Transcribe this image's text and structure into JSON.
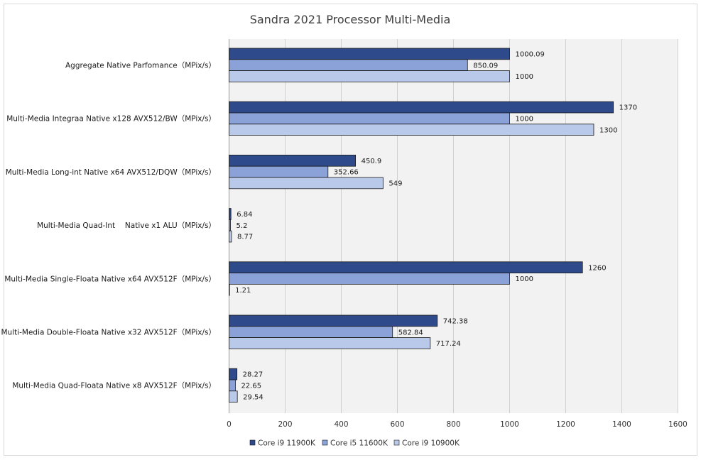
{
  "chart_data": {
    "type": "bar",
    "orientation": "horizontal",
    "title": "Sandra 2021 Processor Multi-Media",
    "categories": [
      "Aggregate Native Parfomance（MPix/s）",
      "Multi-Media Integraa Native x128 AVX512/BW（MPix/s）",
      "Multi-Media Long-int Native x64 AVX512/DQW（MPix/s）",
      "Multi-Media Quad-Int　 Native x1 ALU（MPix/s）",
      "Multi-Media Single-Floata Native x64 AVX512F（MPix/s）",
      "Multi-Media Double-Floata Native x32 AVX512F（MPix/s）",
      "Multi-Media Quad-Floata Native x8 AVX512F（MPix/s）"
    ],
    "series": [
      {
        "name": "Core i9 11900K",
        "color": "#2f4a8a",
        "values": [
          1000.09,
          1370,
          450.9,
          6.84,
          1260,
          742.38,
          28.27
        ],
        "labels": [
          "1000.09",
          "1370",
          "450.9",
          "6.84",
          "1260",
          "742.38",
          "28.27"
        ]
      },
      {
        "name": "Core i5 11600K",
        "color": "#8aa2d8",
        "values": [
          850.09,
          1000,
          352.66,
          5.2,
          1000,
          582.84,
          22.65
        ],
        "labels": [
          "850.09",
          "1000",
          "352.66",
          "5.2",
          "1000",
          "582.84",
          "22.65"
        ]
      },
      {
        "name": "Core i9 10900K",
        "color": "#b9c9ea",
        "values": [
          1000,
          1300,
          549,
          8.77,
          1.21,
          717.24,
          29.54
        ],
        "labels": [
          "1000",
          "1300",
          "549",
          "8.77",
          "1.21",
          "717.24",
          "29.54"
        ]
      }
    ],
    "xlim": [
      0,
      1600
    ],
    "xticks": [
      0,
      200,
      400,
      600,
      800,
      1000,
      1200,
      1400,
      1600
    ],
    "xtick_labels": [
      "0",
      "200",
      "400",
      "600",
      "800",
      "1000",
      "1200",
      "1400",
      "1600"
    ],
    "xlabel": "",
    "ylabel": "",
    "grid": true,
    "plot_background": "#f2f2f2",
    "legend_position": "bottom"
  }
}
